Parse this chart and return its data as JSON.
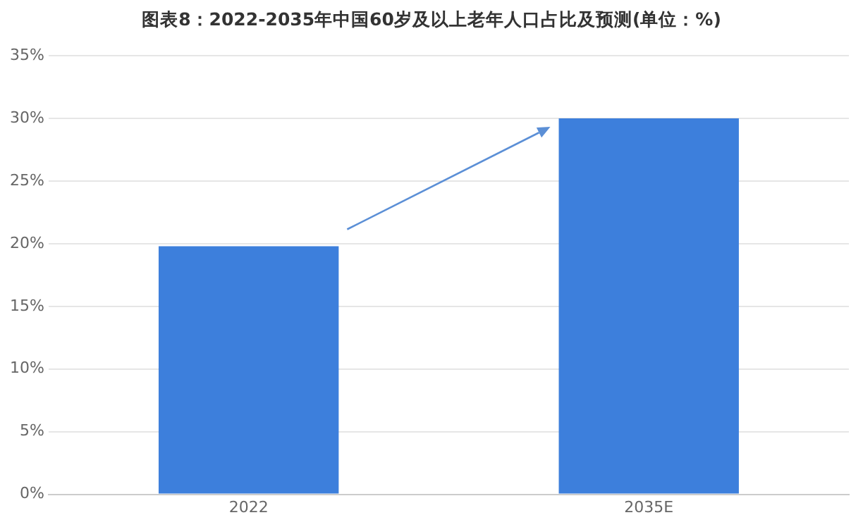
{
  "chart_data": {
    "type": "bar",
    "title": "图表8：2022-2035年中国60岁及以上老年人口占比及预测(单位：%)",
    "categories": [
      "2022",
      "2035E"
    ],
    "values": [
      19.8,
      30
    ],
    "color": "#3d7fdc",
    "ylim": [
      0,
      35
    ],
    "yticks": [
      {
        "value": 0,
        "label": "0%"
      },
      {
        "value": 5,
        "label": "5%"
      },
      {
        "value": 10,
        "label": "10%"
      },
      {
        "value": 15,
        "label": "15%"
      },
      {
        "value": 20,
        "label": "20%"
      },
      {
        "value": 25,
        "label": "25%"
      },
      {
        "value": 30,
        "label": "30%"
      },
      {
        "value": 35,
        "label": "35%"
      }
    ],
    "grid": "y"
  }
}
